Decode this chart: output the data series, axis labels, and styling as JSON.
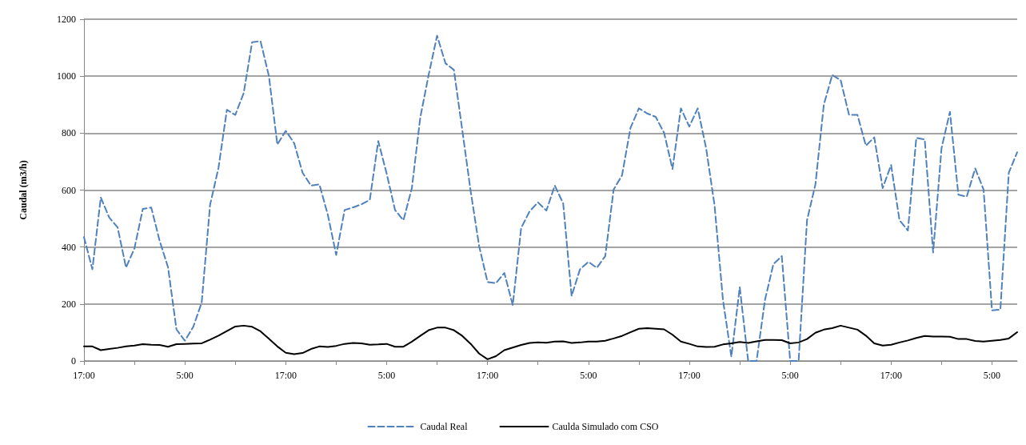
{
  "chart_data": {
    "type": "line",
    "ylabel": "Caudal (m3/h)",
    "categories": [
      "17:00",
      null,
      null,
      null,
      null,
      null,
      null,
      null,
      null,
      null,
      null,
      null,
      "5:00",
      null,
      null,
      null,
      null,
      null,
      null,
      null,
      null,
      null,
      null,
      null,
      "17:00",
      null,
      null,
      null,
      null,
      null,
      null,
      null,
      null,
      null,
      null,
      null,
      "5:00",
      null,
      null,
      null,
      null,
      null,
      null,
      null,
      null,
      null,
      null,
      null,
      "17:00",
      null,
      null,
      null,
      null,
      null,
      null,
      null,
      null,
      null,
      null,
      null,
      "5:00",
      null,
      null,
      null,
      null,
      null,
      null,
      null,
      null,
      null,
      null,
      null,
      "17:00",
      null,
      null,
      null,
      null,
      null,
      null,
      null,
      null,
      null,
      null,
      null,
      "5:00",
      null,
      null,
      null,
      null,
      null,
      null,
      null,
      null,
      null,
      null,
      null,
      "17:00",
      null,
      null,
      null,
      null,
      null,
      null,
      null,
      null,
      null,
      null,
      null,
      "5:00",
      null,
      null,
      null
    ],
    "ylim": [
      0,
      1200
    ],
    "yticks": [
      0,
      200,
      400,
      600,
      800,
      1000,
      1200
    ],
    "grid": "y",
    "legend": "bottom",
    "marker": "none",
    "series": [
      {
        "name": "Caudal Real",
        "color": "#4f81bd",
        "line_style": "dashed",
        "values": [
          435,
          322,
          574,
          504,
          469,
          328,
          395,
          534,
          539,
          422,
          329,
          111,
          71,
          120,
          205,
          548,
          678,
          882,
          864,
          941,
          1119,
          1123,
          1000,
          760,
          808,
          765,
          661,
          616,
          620,
          514,
          372,
          530,
          539,
          550,
          566,
          772,
          658,
          530,
          494,
          607,
          855,
          1005,
          1142,
          1045,
          1022,
          810,
          595,
          404,
          277,
          273,
          309,
          196,
          467,
          525,
          557,
          528,
          616,
          553,
          228,
          322,
          348,
          327,
          368,
          602,
          652,
          818,
          887,
          869,
          857,
          801,
          674,
          887,
          823,
          887,
          747,
          547,
          215,
          15,
          259,
          0,
          0,
          214,
          340,
          368,
          0,
          0,
          494,
          620,
          900,
          1004,
          986,
          864,
          864,
          756,
          785,
          607,
          688,
          494,
          458,
          783,
          778,
          381,
          747,
          875,
          584,
          577,
          676,
          602,
          178,
          180,
          661,
          733
        ]
      },
      {
        "name": "Caulda Simulado com CSO",
        "color": "#000000",
        "line_style": "solid",
        "values": [
          51,
          51,
          38,
          42,
          46,
          51,
          54,
          59,
          57,
          56,
          50,
          59,
          60,
          61,
          62,
          75,
          89,
          105,
          121,
          124,
          120,
          104,
          78,
          51,
          29,
          24,
          28,
          42,
          51,
          49,
          53,
          60,
          63,
          62,
          57,
          58,
          60,
          50,
          50,
          68,
          88,
          108,
          117,
          117,
          108,
          88,
          60,
          26,
          6,
          17,
          38,
          47,
          56,
          63,
          65,
          64,
          68,
          69,
          63,
          65,
          68,
          68,
          71,
          79,
          88,
          101,
          113,
          115,
          113,
          111,
          92,
          68,
          60,
          51,
          49,
          50,
          58,
          62,
          67,
          63,
          69,
          74,
          74,
          73,
          62,
          65,
          77,
          99,
          110,
          115,
          124,
          117,
          110,
          89,
          62,
          54,
          57,
          65,
          72,
          81,
          88,
          86,
          86,
          85,
          77,
          77,
          70,
          68,
          71,
          74,
          79,
          101
        ]
      }
    ]
  }
}
